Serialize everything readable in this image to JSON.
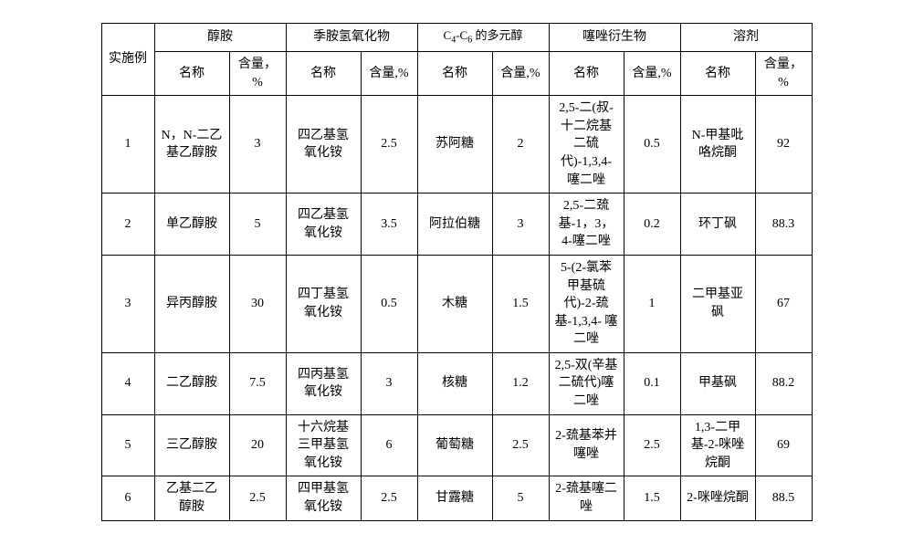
{
  "table": {
    "type": "table",
    "background_color": "#ffffff",
    "border_color": "#000000",
    "font_family": "SimSun",
    "font_size": 14,
    "header": {
      "example_label": "实施例",
      "groups": [
        {
          "title": "醇胺",
          "name_label": "名称",
          "content_label": "含量，%"
        },
        {
          "title": "季胺氢氧化物",
          "name_label": "名称",
          "content_label": "含量,%"
        },
        {
          "title_prefix": "C",
          "sub1": "4",
          "title_mid": "-C",
          "sub2": "6",
          "title_suffix": " 的多元醇",
          "name_label": "名称",
          "content_label": "含量,%"
        },
        {
          "title": "噻唑衍生物",
          "name_label": "名称",
          "content_label": "含量,%"
        },
        {
          "title": "溶剂",
          "name_label": "名称",
          "content_label": "含量，%"
        }
      ]
    },
    "rows": [
      {
        "example": "1",
        "cells": [
          {
            "name": "N，N-二乙基乙醇胺",
            "content": "3"
          },
          {
            "name": "四乙基氢氧化铵",
            "content": "2.5"
          },
          {
            "name": "苏阿糖",
            "content": "2"
          },
          {
            "name": "2,5-二(叔-十二烷基二硫代)-1,3,4-噻二唑",
            "content": "0.5"
          },
          {
            "name": "N-甲基吡咯烷酮",
            "content": "92"
          }
        ]
      },
      {
        "example": "2",
        "cells": [
          {
            "name": "单乙醇胺",
            "content": "5"
          },
          {
            "name": "四乙基氢氧化铵",
            "content": "3.5"
          },
          {
            "name": "阿拉伯糖",
            "content": "3"
          },
          {
            "name": "2,5-二巯基-1，3，4-噻二唑",
            "content": "0.2"
          },
          {
            "name": "环丁砜",
            "content": "88.3"
          }
        ]
      },
      {
        "example": "3",
        "cells": [
          {
            "name": "异丙醇胺",
            "content": "30"
          },
          {
            "name": "四丁基氢氧化铵",
            "content": "0.5"
          },
          {
            "name": "木糖",
            "content": "1.5"
          },
          {
            "name": "5-(2-氯苯甲基硫代)-2-巯基-1,3,4- 噻二唑",
            "content": "1"
          },
          {
            "name": "二甲基亚砜",
            "content": "67"
          }
        ]
      },
      {
        "example": "4",
        "cells": [
          {
            "name": "二乙醇胺",
            "content": "7.5"
          },
          {
            "name": "四丙基氢氧化铵",
            "content": "3"
          },
          {
            "name": "核糖",
            "content": "1.2"
          },
          {
            "name": "2,5-双(辛基二硫代)噻二唑",
            "content": "0.1"
          },
          {
            "name": "甲基砜",
            "content": "88.2"
          }
        ]
      },
      {
        "example": "5",
        "cells": [
          {
            "name": "三乙醇胺",
            "content": "20"
          },
          {
            "name": "十六烷基三甲基氢氧化铵",
            "content": "6"
          },
          {
            "name": "葡萄糖",
            "content": "2.5"
          },
          {
            "name": "2-巯基苯并噻唑",
            "content": "2.5"
          },
          {
            "name": "1,3-二甲基-2-咪唑烷酮",
            "content": "69"
          }
        ]
      },
      {
        "example": "6",
        "cells": [
          {
            "name": "乙基二乙醇胺",
            "content": "2.5"
          },
          {
            "name": "四甲基氢氧化铵",
            "content": "2.5"
          },
          {
            "name": "甘露糖",
            "content": "5"
          },
          {
            "name": "2-巯基噻二唑",
            "content": "1.5"
          },
          {
            "name": "2-咪唑烷酮",
            "content": "88.5"
          }
        ]
      }
    ]
  }
}
